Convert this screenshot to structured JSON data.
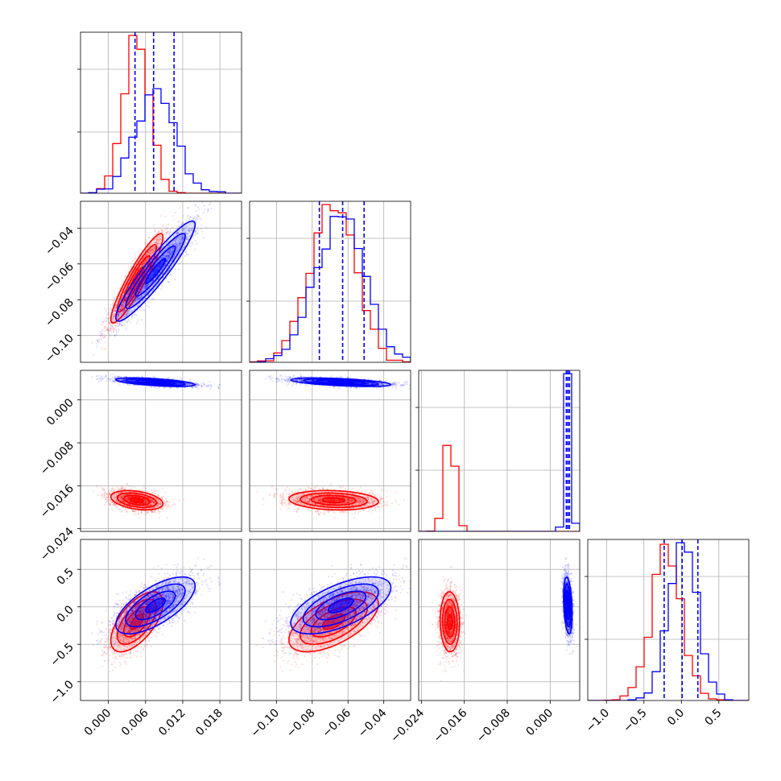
{
  "chart_data": {
    "type": "corner",
    "title": "",
    "parameters": [
      {
        "range": [
          -0.0045,
          0.0215
        ],
        "ticks": [
          0.0,
          0.006,
          0.012,
          0.018
        ],
        "tick_labels": [
          "0.000",
          "0.006",
          "0.012",
          "0.018"
        ]
      },
      {
        "range": [
          -0.115,
          -0.025
        ],
        "ticks": [
          -0.1,
          -0.08,
          -0.06,
          -0.04
        ],
        "tick_labels": [
          "−0.10",
          "−0.08",
          "−0.06",
          "−0.04"
        ]
      },
      {
        "range": [
          -0.0245,
          0.0055
        ],
        "ticks": [
          -0.024,
          -0.016,
          -0.008,
          0.0
        ],
        "tick_labels": [
          "−0.024",
          "−0.016",
          "−0.008",
          "0.000"
        ]
      },
      {
        "range": [
          -1.25,
          0.9
        ],
        "ticks": [
          -1.0,
          -0.5,
          0.0,
          0.5
        ],
        "tick_labels": [
          "−1.0",
          "−0.5",
          "0.0",
          "0.5"
        ]
      }
    ],
    "colors": {
      "red": "#ff0000",
      "blue": "#0000ff"
    },
    "series": [
      {
        "color": "#ff0000",
        "mean": [
          0.0046,
          -0.068,
          -0.0187,
          -0.2
        ],
        "std": [
          0.0021,
          0.0125,
          0.0009,
          0.2
        ],
        "corr": [
          [
            1,
            0.92,
            -0.35,
            0.62
          ],
          [
            0.92,
            1,
            -0.15,
            0.6
          ],
          [
            -0.35,
            -0.15,
            1,
            -0.05
          ],
          [
            0.62,
            0.6,
            -0.05,
            1
          ]
        ]
      },
      {
        "color": "#0000ff",
        "mean": [
          0.0076,
          -0.064,
          0.0033,
          0.02
        ],
        "std": [
          0.0032,
          0.014,
          0.0004,
          0.19
        ],
        "corr": [
          [
            1,
            0.93,
            -0.6,
            0.68
          ],
          [
            0.93,
            1,
            -0.55,
            0.62
          ],
          [
            -0.6,
            -0.55,
            1,
            -0.3
          ],
          [
            0.68,
            0.62,
            -0.3,
            1
          ]
        ]
      }
    ],
    "quantile_lines": {
      "color": "#0000ff",
      "style": "dashed",
      "values": [
        [
          0.0043,
          0.0073,
          0.0106
        ],
        [
          -0.076,
          -0.063,
          -0.051
        ],
        [
          0.003,
          0.0033,
          0.0036
        ],
        [
          -0.23,
          0.01,
          0.22
        ]
      ]
    },
    "grid": true
  }
}
